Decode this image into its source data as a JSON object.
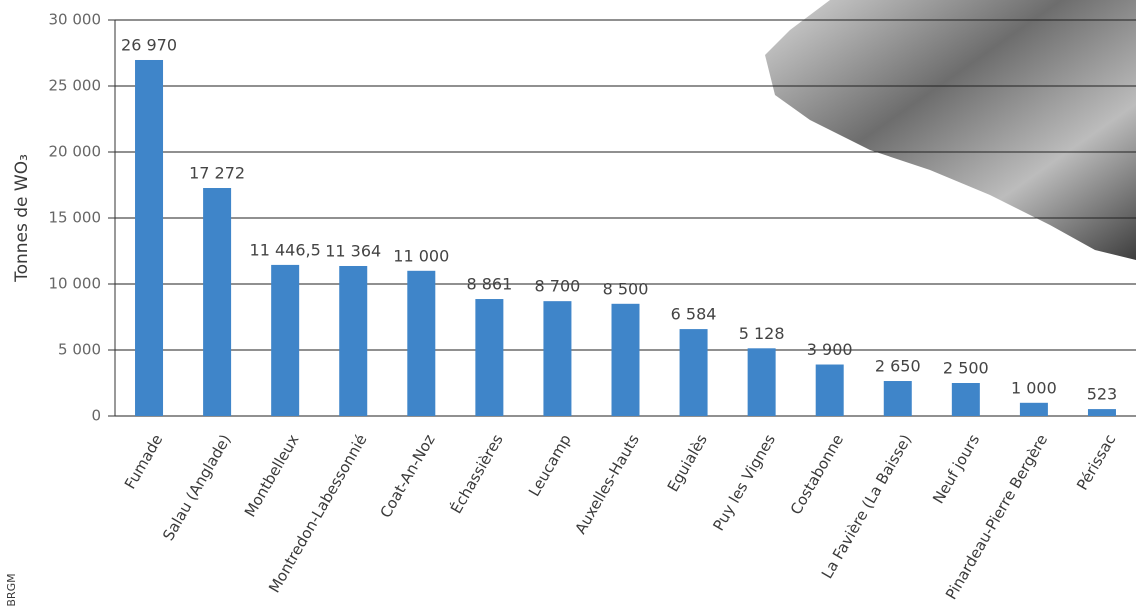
{
  "chart_data": {
    "type": "bar",
    "y_label": "Tonnes de WO₃",
    "categories": [
      "Fumade",
      "Salau (Anglade)",
      "Montbelleux",
      "Montredon-Labessonnié",
      "Coat-An-Noz",
      "Échassières",
      "Leucamp",
      "Auxelles-Hauts",
      "Eguialès",
      "Puy les Vignes",
      "Costabonne",
      "La Favière (La Baisse)",
      "Neuf jours",
      "Pinardeau-Pierre Bergère",
      "Périssac"
    ],
    "values": [
      26970,
      17272,
      11446.5,
      11364,
      11000,
      8861,
      8700,
      8500,
      6584,
      5128,
      3900,
      2650,
      2500,
      1000,
      523
    ],
    "value_labels": [
      "26 970",
      "17 272",
      "11 446,5",
      "11 364",
      "11 000",
      "8 861",
      "8 700",
      "8 500",
      "6 584",
      "5 128",
      "3 900",
      "2 650",
      "2 500",
      "1 000",
      "523"
    ],
    "color": "#3f85c9",
    "ylim": [
      0,
      30000
    ],
    "yticks": [
      0,
      {
        "value": 5000,
        "label": "5 000"
      },
      {
        "value": 10000,
        "label": "10 000"
      },
      {
        "value": 15000,
        "label": "15 000"
      },
      {
        "value": 20000,
        "label": "20 000"
      },
      {
        "value": 25000,
        "label": "25 000"
      },
      {
        "value": 30000,
        "label": "30 000"
      }
    ],
    "grid": true,
    "annotations": [
      "BRGM"
    ]
  }
}
